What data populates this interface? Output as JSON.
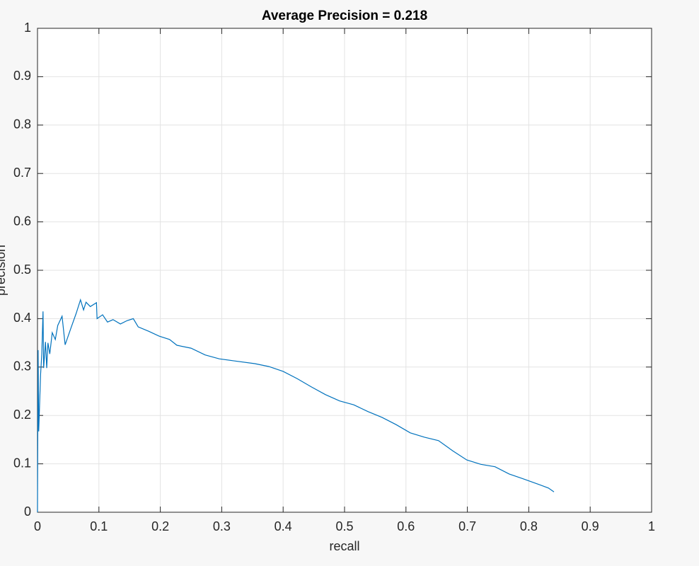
{
  "chart_data": {
    "type": "line",
    "title": "Average Precision = 0.218",
    "x_label": "recall",
    "y_label": "precision",
    "x": [
      0,
      0.001,
      0.002,
      0.005,
      0.007,
      0.009,
      0.01,
      0.013,
      0.015,
      0.017,
      0.02,
      0.024,
      0.029,
      0.033,
      0.04,
      0.045,
      0.054,
      0.063,
      0.07,
      0.075,
      0.079,
      0.086,
      0.096,
      0.097,
      0.106,
      0.114,
      0.123,
      0.135,
      0.146,
      0.156,
      0.164,
      0.181,
      0.198,
      0.215,
      0.227,
      0.25,
      0.273,
      0.296,
      0.319,
      0.354,
      0.377,
      0.4,
      0.423,
      0.446,
      0.469,
      0.492,
      0.515,
      0.538,
      0.561,
      0.584,
      0.607,
      0.63,
      0.653,
      0.676,
      0.699,
      0.722,
      0.745,
      0.768,
      0.791,
      0.815,
      0.832,
      0.841
    ],
    "series": [
      {
        "color": "#0072bd",
        "values": [
          0,
          0.335,
          0.167,
          0.284,
          0.327,
          0.415,
          0.298,
          0.352,
          0.298,
          0.35,
          0.327,
          0.371,
          0.357,
          0.386,
          0.405,
          0.346,
          0.379,
          0.411,
          0.439,
          0.418,
          0.434,
          0.425,
          0.433,
          0.4,
          0.408,
          0.393,
          0.398,
          0.389,
          0.396,
          0.4,
          0.383,
          0.374,
          0.364,
          0.357,
          0.345,
          0.339,
          0.325,
          0.317,
          0.313,
          0.307,
          0.301,
          0.291,
          0.276,
          0.259,
          0.243,
          0.23,
          0.222,
          0.208,
          0.196,
          0.181,
          0.164,
          0.155,
          0.148,
          0.127,
          0.108,
          0.099,
          0.094,
          0.079,
          0.069,
          0.058,
          0.05,
          0.042
        ]
      }
    ],
    "xlim": [
      0,
      1
    ],
    "xticks": [
      0,
      0.1,
      0.2,
      0.3,
      0.4,
      0.5,
      0.6,
      0.7,
      0.8,
      0.9,
      1
    ],
    "ylim": [
      0,
      1
    ],
    "yticks": [
      0,
      0.1,
      0.2,
      0.3,
      0.4,
      0.5,
      0.6,
      0.7,
      0.8,
      0.9,
      1
    ],
    "grid": true
  }
}
